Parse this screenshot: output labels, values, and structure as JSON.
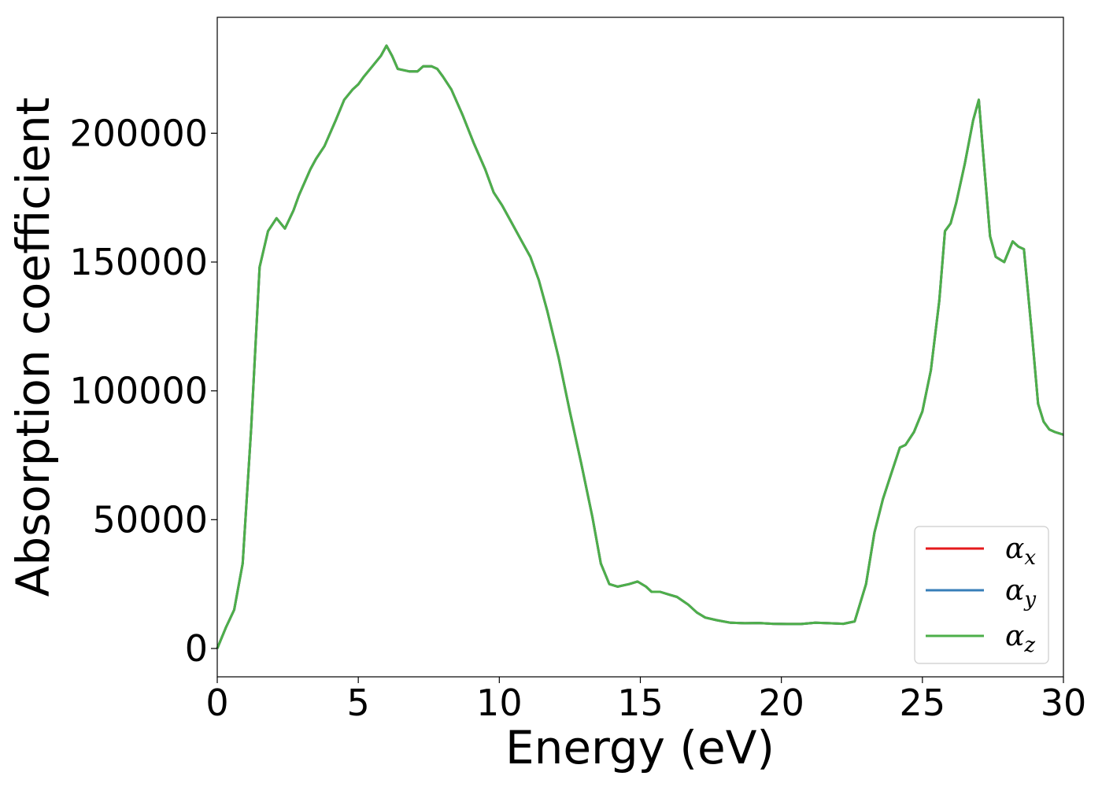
{
  "chart_data": {
    "type": "line",
    "title": "",
    "xlabel": "Energy (eV)",
    "ylabel": "Absorption coefficient",
    "xlim": [
      0,
      30
    ],
    "ylim": [
      -11000,
      245000
    ],
    "xticks": [
      0,
      5,
      10,
      15,
      20,
      25,
      30
    ],
    "xtick_labels": [
      "0",
      "5",
      "10",
      "15",
      "20",
      "25",
      "30"
    ],
    "yticks": [
      0,
      50000,
      100000,
      150000,
      200000
    ],
    "ytick_labels": [
      "0",
      "50000",
      "100000",
      "150000",
      "200000"
    ],
    "grid": false,
    "legend_position": "lower-right",
    "series": [
      {
        "name": "α_x",
        "legend_symbol": "α",
        "legend_sub": "x",
        "color": "#e41a1c",
        "x": [
          0,
          0.3,
          0.6,
          0.9,
          1.2,
          1.5,
          1.8,
          2.1,
          2.4,
          2.7,
          2.9,
          3.1,
          3.3,
          3.5,
          3.8,
          4.2,
          4.5,
          4.8,
          5.0,
          5.2,
          5.5,
          5.8,
          6.0,
          6.2,
          6.4,
          6.8,
          7.1,
          7.3,
          7.6,
          7.8,
          8.0,
          8.3,
          8.7,
          9.1,
          9.5,
          9.8,
          10.1,
          10.4,
          10.8,
          11.1,
          11.4,
          11.7,
          12.1,
          12.5,
          12.9,
          13.3,
          13.6,
          13.9,
          14.2,
          14.6,
          14.9,
          15.2,
          15.4,
          15.7,
          16.0,
          16.3,
          16.7,
          17.0,
          17.3,
          17.7,
          18.2,
          18.7,
          19.2,
          19.7,
          20.2,
          20.7,
          21.2,
          21.7,
          22.2,
          22.6,
          23.0,
          23.3,
          23.6,
          23.9,
          24.2,
          24.4,
          24.7,
          25.0,
          25.3,
          25.6,
          25.8,
          26.0,
          26.2,
          26.5,
          26.8,
          27.0,
          27.2,
          27.4,
          27.6,
          27.9,
          28.2,
          28.4,
          28.6,
          28.9,
          29.1,
          29.3,
          29.5,
          29.7,
          30.0
        ],
        "y": [
          0,
          8000,
          15000,
          33000,
          85000,
          148000,
          162000,
          167000,
          163000,
          170000,
          176000,
          181000,
          186000,
          190000,
          195000,
          205000,
          213000,
          217000,
          219000,
          222000,
          226000,
          230000,
          234000,
          230000,
          225000,
          224000,
          224000,
          226000,
          226000,
          225000,
          222000,
          217000,
          207000,
          196000,
          186000,
          177000,
          172000,
          166000,
          158000,
          152000,
          143000,
          131000,
          113000,
          92000,
          72000,
          51000,
          33000,
          25000,
          24000,
          25000,
          26000,
          24000,
          22000,
          22000,
          21000,
          20000,
          17000,
          14000,
          12000,
          11000,
          10000,
          9800,
          9900,
          9600,
          9500,
          9500,
          10000,
          9800,
          9600,
          10500,
          25000,
          45000,
          58000,
          68000,
          78000,
          79000,
          84000,
          92000,
          108000,
          135000,
          162000,
          165000,
          173000,
          188000,
          205000,
          213000,
          186000,
          160000,
          152000,
          150000,
          158000,
          156000,
          155000,
          120000,
          95000,
          88000,
          85000,
          84000,
          83000
        ]
      },
      {
        "name": "α_y",
        "legend_symbol": "α",
        "legend_sub": "y",
        "color": "#377eb8",
        "x": [
          0,
          0.3,
          0.6,
          0.9,
          1.2,
          1.5,
          1.8,
          2.1,
          2.4,
          2.7,
          2.9,
          3.1,
          3.3,
          3.5,
          3.8,
          4.2,
          4.5,
          4.8,
          5.0,
          5.2,
          5.5,
          5.8,
          6.0,
          6.2,
          6.4,
          6.8,
          7.1,
          7.3,
          7.6,
          7.8,
          8.0,
          8.3,
          8.7,
          9.1,
          9.5,
          9.8,
          10.1,
          10.4,
          10.8,
          11.1,
          11.4,
          11.7,
          12.1,
          12.5,
          12.9,
          13.3,
          13.6,
          13.9,
          14.2,
          14.6,
          14.9,
          15.2,
          15.4,
          15.7,
          16.0,
          16.3,
          16.7,
          17.0,
          17.3,
          17.7,
          18.2,
          18.7,
          19.2,
          19.7,
          20.2,
          20.7,
          21.2,
          21.7,
          22.2,
          22.6,
          23.0,
          23.3,
          23.6,
          23.9,
          24.2,
          24.4,
          24.7,
          25.0,
          25.3,
          25.6,
          25.8,
          26.0,
          26.2,
          26.5,
          26.8,
          27.0,
          27.2,
          27.4,
          27.6,
          27.9,
          28.2,
          28.4,
          28.6,
          28.9,
          29.1,
          29.3,
          29.5,
          29.7,
          30.0
        ],
        "y": [
          0,
          8000,
          15000,
          33000,
          85000,
          148000,
          162000,
          167000,
          163000,
          170000,
          176000,
          181000,
          186000,
          190000,
          195000,
          205000,
          213000,
          217000,
          219000,
          222000,
          226000,
          230000,
          234000,
          230000,
          225000,
          224000,
          224000,
          226000,
          226000,
          225000,
          222000,
          217000,
          207000,
          196000,
          186000,
          177000,
          172000,
          166000,
          158000,
          152000,
          143000,
          131000,
          113000,
          92000,
          72000,
          51000,
          33000,
          25000,
          24000,
          25000,
          26000,
          24000,
          22000,
          22000,
          21000,
          20000,
          17000,
          14000,
          12000,
          11000,
          10000,
          9800,
          9900,
          9600,
          9500,
          9500,
          10000,
          9800,
          9600,
          10500,
          25000,
          45000,
          58000,
          68000,
          78000,
          79000,
          84000,
          92000,
          108000,
          135000,
          162000,
          165000,
          173000,
          188000,
          205000,
          213000,
          186000,
          160000,
          152000,
          150000,
          158000,
          156000,
          155000,
          120000,
          95000,
          88000,
          85000,
          84000,
          83000
        ]
      },
      {
        "name": "α_z",
        "legend_symbol": "α",
        "legend_sub": "z",
        "color": "#4daf4a",
        "x": [
          0,
          0.3,
          0.6,
          0.9,
          1.2,
          1.5,
          1.8,
          2.1,
          2.4,
          2.7,
          2.9,
          3.1,
          3.3,
          3.5,
          3.8,
          4.2,
          4.5,
          4.8,
          5.0,
          5.2,
          5.5,
          5.8,
          6.0,
          6.2,
          6.4,
          6.8,
          7.1,
          7.3,
          7.6,
          7.8,
          8.0,
          8.3,
          8.7,
          9.1,
          9.5,
          9.8,
          10.1,
          10.4,
          10.8,
          11.1,
          11.4,
          11.7,
          12.1,
          12.5,
          12.9,
          13.3,
          13.6,
          13.9,
          14.2,
          14.6,
          14.9,
          15.2,
          15.4,
          15.7,
          16.0,
          16.3,
          16.7,
          17.0,
          17.3,
          17.7,
          18.2,
          18.7,
          19.2,
          19.7,
          20.2,
          20.7,
          21.2,
          21.7,
          22.2,
          22.6,
          23.0,
          23.3,
          23.6,
          23.9,
          24.2,
          24.4,
          24.7,
          25.0,
          25.3,
          25.6,
          25.8,
          26.0,
          26.2,
          26.5,
          26.8,
          27.0,
          27.2,
          27.4,
          27.6,
          27.9,
          28.2,
          28.4,
          28.6,
          28.9,
          29.1,
          29.3,
          29.5,
          29.7,
          30.0
        ],
        "y": [
          0,
          8000,
          15000,
          33000,
          85000,
          148000,
          162000,
          167000,
          163000,
          170000,
          176000,
          181000,
          186000,
          190000,
          195000,
          205000,
          213000,
          217000,
          219000,
          222000,
          226000,
          230000,
          234000,
          230000,
          225000,
          224000,
          224000,
          226000,
          226000,
          225000,
          222000,
          217000,
          207000,
          196000,
          186000,
          177000,
          172000,
          166000,
          158000,
          152000,
          143000,
          131000,
          113000,
          92000,
          72000,
          51000,
          33000,
          25000,
          24000,
          25000,
          26000,
          24000,
          22000,
          22000,
          21000,
          20000,
          17000,
          14000,
          12000,
          11000,
          10000,
          9800,
          9900,
          9600,
          9500,
          9500,
          10000,
          9800,
          9600,
          10500,
          25000,
          45000,
          58000,
          68000,
          78000,
          79000,
          84000,
          92000,
          108000,
          135000,
          162000,
          165000,
          173000,
          188000,
          205000,
          213000,
          186000,
          160000,
          152000,
          150000,
          158000,
          156000,
          155000,
          120000,
          95000,
          88000,
          85000,
          84000,
          83000
        ]
      }
    ]
  }
}
